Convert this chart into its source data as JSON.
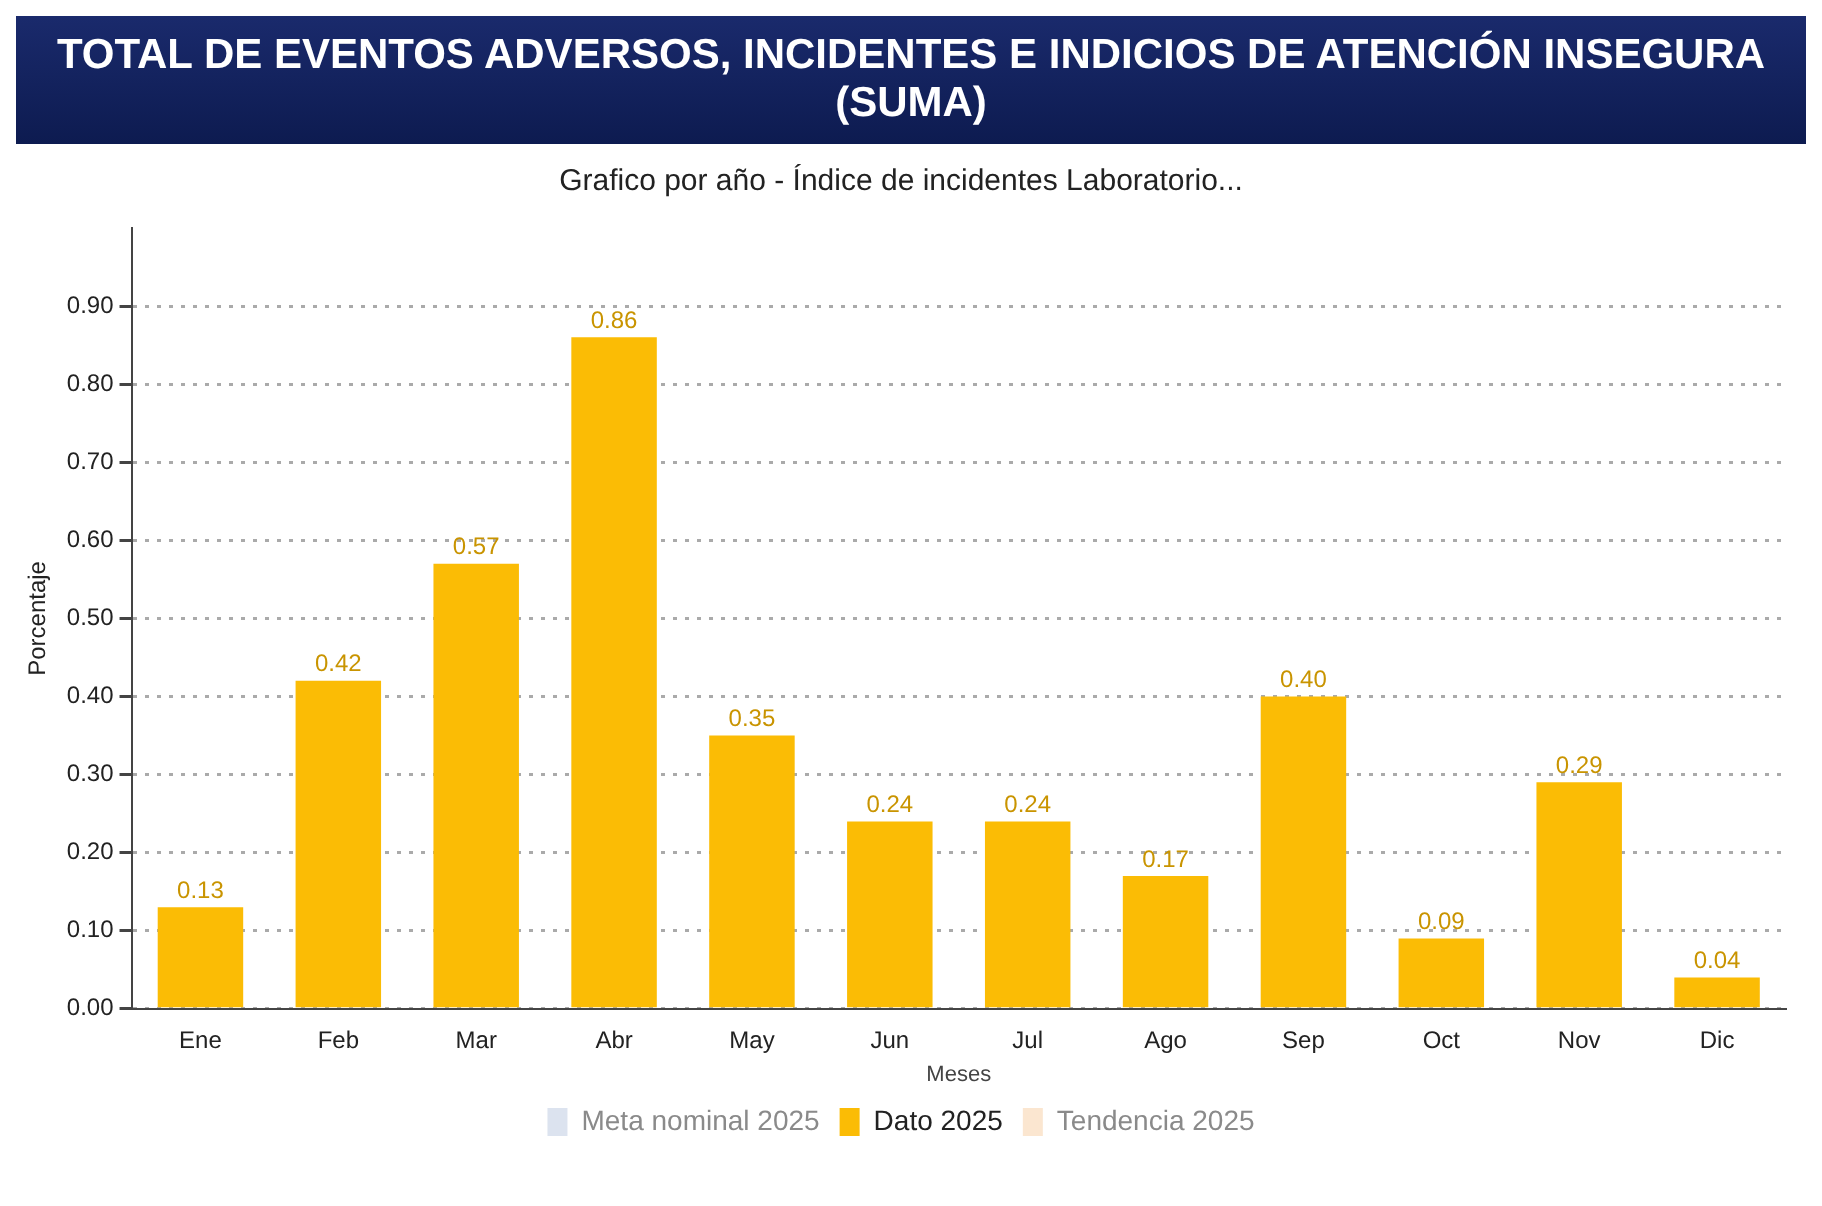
{
  "chart_data": {
    "type": "bar",
    "title": "TOTAL DE EVENTOS ADVERSOS, INCIDENTES E INDICIOS DE ATENCIÓN INSEGURA (SUMA)",
    "subtitle": "Grafico por año - Índice de incidentes Laboratorio...",
    "xlabel": "Meses",
    "ylabel": "Porcentaje",
    "categories": [
      "Ene",
      "Feb",
      "Mar",
      "Abr",
      "May",
      "Jun",
      "Jul",
      "Ago",
      "Sep",
      "Oct",
      "Nov",
      "Dic"
    ],
    "series": [
      {
        "name": "Meta nominal 2025",
        "color": "#dce3ef",
        "values": [
          null,
          null,
          null,
          null,
          null,
          null,
          null,
          null,
          null,
          null,
          null,
          null
        ]
      },
      {
        "name": "Dato 2025",
        "color": "#fbbc05",
        "values": [
          0.13,
          0.42,
          0.57,
          0.86,
          0.35,
          0.24,
          0.24,
          0.17,
          0.4,
          0.09,
          0.29,
          0.04
        ],
        "value_labels": [
          "0.13",
          "0.42",
          "0.57",
          "0.86",
          "0.35",
          "0.24",
          "0.24",
          "0.17",
          "0.40",
          "0.09",
          "0.29",
          "0.04"
        ]
      },
      {
        "name": "Tendencia 2025",
        "color": "#fbe6d0",
        "values": [
          null,
          null,
          null,
          null,
          null,
          null,
          null,
          null,
          null,
          null,
          null,
          null
        ]
      }
    ],
    "ylim": [
      0,
      1
    ],
    "yticks": [
      {
        "value": 0,
        "label": "0.00"
      },
      {
        "value": 0.1,
        "label": "0.10"
      },
      {
        "value": 0.2,
        "label": "0.20"
      },
      {
        "value": 0.3,
        "label": "0.30"
      },
      {
        "value": 0.4,
        "label": "0.40"
      },
      {
        "value": 0.5,
        "label": "0.50"
      },
      {
        "value": 0.6,
        "label": "0.60"
      },
      {
        "value": 0.7,
        "label": "0.70"
      },
      {
        "value": 0.8,
        "label": "0.80"
      },
      {
        "value": 0.9,
        "label": "0.90"
      }
    ],
    "grid": "y",
    "legend": "bottom"
  }
}
